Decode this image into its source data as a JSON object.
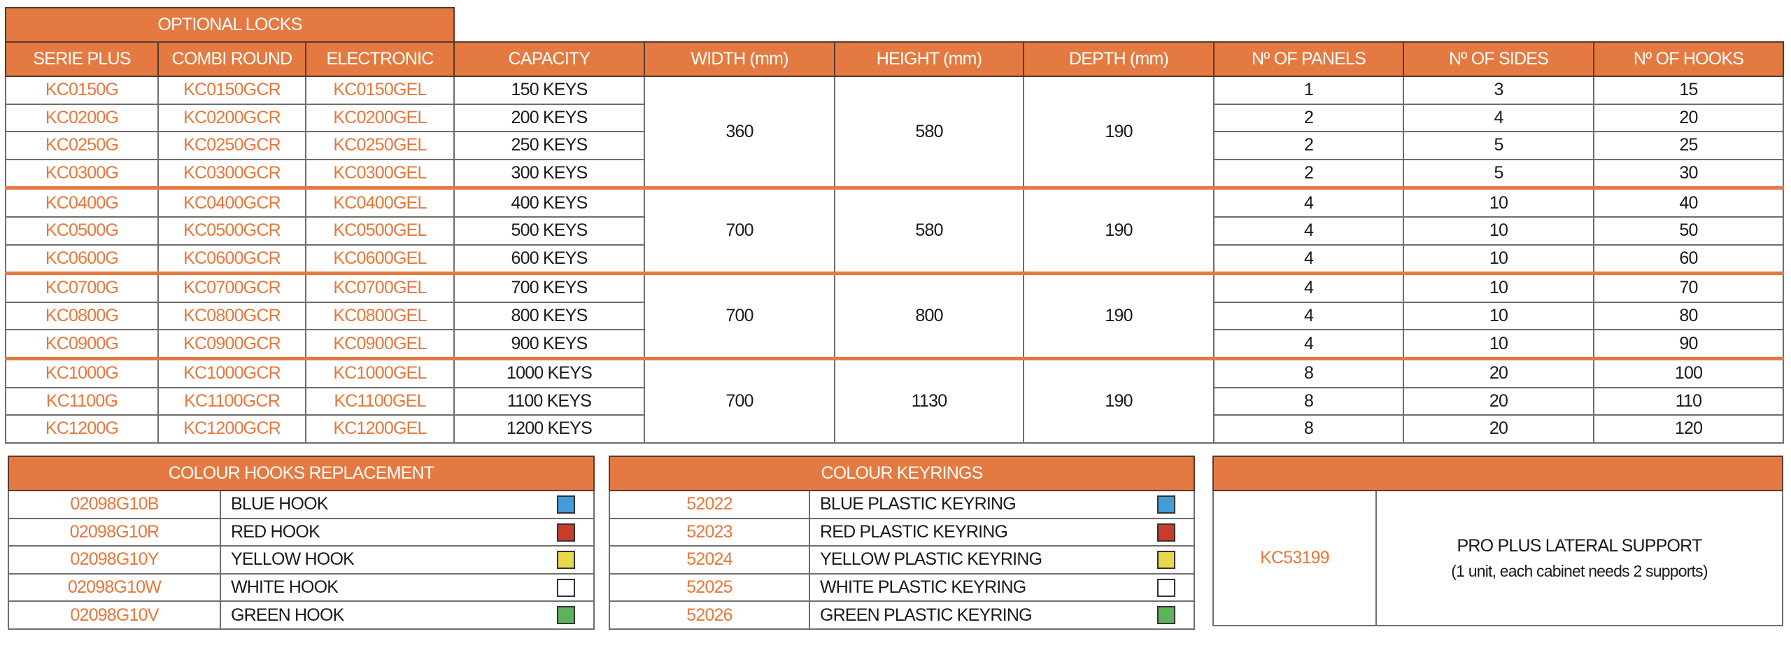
{
  "main": {
    "group_header": "OPTIONAL LOCKS",
    "headers": [
      "SERIE PLUS",
      "COMBI ROUND",
      "ELECTRONIC",
      "CAPACITY",
      "WIDTH (mm)",
      "HEIGHT (mm)",
      "DEPTH (mm)",
      "Nº OF PANELS",
      "Nº OF SIDES",
      "Nº OF HOOKS"
    ],
    "groups": [
      {
        "width": "360",
        "height": "580",
        "depth": "190",
        "rows": [
          [
            "KC0150G",
            "KC0150GCR",
            "KC0150GEL",
            "150 KEYS",
            "1",
            "3",
            "15"
          ],
          [
            "KC0200G",
            "KC0200GCR",
            "KC0200GEL",
            "200 KEYS",
            "2",
            "4",
            "20"
          ],
          [
            "KC0250G",
            "KC0250GCR",
            "KC0250GEL",
            "250 KEYS",
            "2",
            "5",
            "25"
          ],
          [
            "KC0300G",
            "KC0300GCR",
            "KC0300GEL",
            "300 KEYS",
            "2",
            "5",
            "30"
          ]
        ]
      },
      {
        "width": "700",
        "height": "580",
        "depth": "190",
        "rows": [
          [
            "KC0400G",
            "KC0400GCR",
            "KC0400GEL",
            "400 KEYS",
            "4",
            "10",
            "40"
          ],
          [
            "KC0500G",
            "KC0500GCR",
            "KC0500GEL",
            "500 KEYS",
            "4",
            "10",
            "50"
          ],
          [
            "KC0600G",
            "KC0600GCR",
            "KC0600GEL",
            "600 KEYS",
            "4",
            "10",
            "60"
          ]
        ]
      },
      {
        "width": "700",
        "height": "800",
        "depth": "190",
        "rows": [
          [
            "KC0700G",
            "KC0700GCR",
            "KC0700GEL",
            "700 KEYS",
            "4",
            "10",
            "70"
          ],
          [
            "KC0800G",
            "KC0800GCR",
            "KC0800GEL",
            "800 KEYS",
            "4",
            "10",
            "80"
          ],
          [
            "KC0900G",
            "KC0900GCR",
            "KC0900GEL",
            "900 KEYS",
            "4",
            "10",
            "90"
          ]
        ]
      },
      {
        "width": "700",
        "height": "1130",
        "depth": "190",
        "rows": [
          [
            "KC1000G",
            "KC1000GCR",
            "KC1000GEL",
            "1000 KEYS",
            "8",
            "20",
            "100"
          ],
          [
            "KC1100G",
            "KC1100GCR",
            "KC1100GEL",
            "1100 KEYS",
            "8",
            "20",
            "110"
          ],
          [
            "KC1200G",
            "KC1200GCR",
            "KC1200GEL",
            "1200 KEYS",
            "8",
            "20",
            "120"
          ]
        ]
      }
    ]
  },
  "hooks": {
    "title": "COLOUR HOOKS REPLACEMENT",
    "rows": [
      {
        "code": "02098G10B",
        "name": "BLUE HOOK",
        "color": "#429DD8"
      },
      {
        "code": "02098G10R",
        "name": "RED HOOK",
        "color": "#C83C2C"
      },
      {
        "code": "02098G10Y",
        "name": "YELLOW HOOK",
        "color": "#E8D84A"
      },
      {
        "code": "02098G10W",
        "name": "WHITE HOOK",
        "color": "#FFFFFF"
      },
      {
        "code": "02098G10V",
        "name": "GREEN HOOK",
        "color": "#5CB35A"
      }
    ]
  },
  "keyrings": {
    "title": "COLOUR KEYRINGS",
    "rows": [
      {
        "code": "52022",
        "name": "BLUE PLASTIC KEYRING",
        "color": "#429DD8"
      },
      {
        "code": "52023",
        "name": "RED PLASTIC KEYRING",
        "color": "#C83C2C"
      },
      {
        "code": "52024",
        "name": "YELLOW PLASTIC KEYRING",
        "color": "#E8D84A"
      },
      {
        "code": "52025",
        "name": "WHITE PLASTIC KEYRING",
        "color": "#FFFFFF"
      },
      {
        "code": "52026",
        "name": "GREEN PLASTIC KEYRING",
        "color": "#5CB35A"
      }
    ]
  },
  "support": {
    "code": "KC53199",
    "name": "PRO PLUS LATERAL SUPPORT",
    "note": "(1 unit, each cabinet needs 2 supports)"
  },
  "colors": {
    "accent": "#E47A42",
    "code_text": "#E8763A"
  }
}
